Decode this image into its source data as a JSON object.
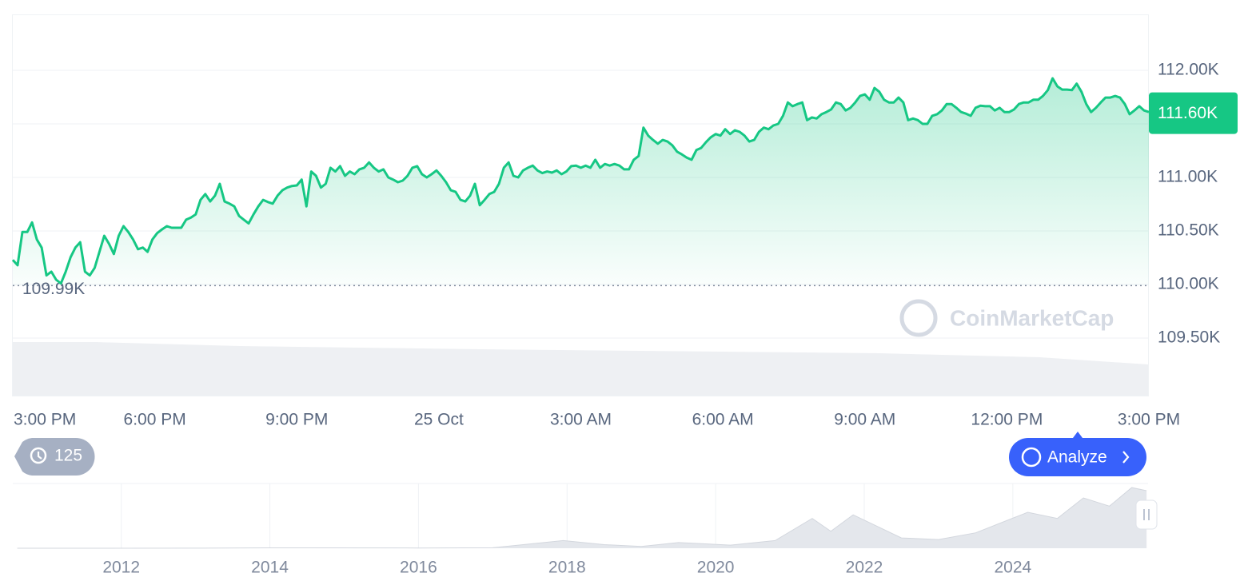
{
  "chart_data": [
    {
      "type": "line",
      "color": "#16c784",
      "xlim": [
        0,
        24
      ],
      "xticks": [
        {
          "value": 0,
          "label": "3:00 PM"
        },
        {
          "value": 3,
          "label": "6:00 PM"
        },
        {
          "value": 6,
          "label": "9:00 PM"
        },
        {
          "value": 9,
          "label": "25 Oct"
        },
        {
          "value": 12,
          "label": "3:00 AM"
        },
        {
          "value": 15,
          "label": "6:00 AM"
        },
        {
          "value": 18,
          "label": "9:00 AM"
        },
        {
          "value": 21,
          "label": "12:00 PM"
        },
        {
          "value": 24,
          "label": "3:00 PM"
        }
      ],
      "ylim": [
        108963,
        112522
      ],
      "yticks": [
        {
          "value": 109500,
          "label": "109.50K"
        },
        {
          "value": 110000,
          "label": "110.00K"
        },
        {
          "value": 110500,
          "label": "110.50K"
        },
        {
          "value": 111000,
          "label": "111.00K"
        },
        {
          "value": 111500,
          "label": "111.50K"
        },
        {
          "value": 112000,
          "label": "112.00K"
        }
      ],
      "grid": true,
      "ref_line": {
        "value": 109990,
        "label": "109.99K"
      },
      "last_price": {
        "value": 111600,
        "label": "111.60K"
      },
      "values": [
        110230,
        110180,
        110490,
        110490,
        110580,
        110420,
        110345,
        110085,
        110120,
        110045,
        110010,
        110120,
        110255,
        110345,
        110395,
        110120,
        110085,
        110155,
        110305,
        110455,
        110380,
        110285,
        110455,
        110545,
        110490,
        110420,
        110330,
        110345,
        110305,
        110420,
        110480,
        110515,
        110545,
        110530,
        110530,
        110530,
        110605,
        110625,
        110655,
        110790,
        110845,
        110775,
        110830,
        110940,
        110775,
        110755,
        110730,
        110640,
        110605,
        110570,
        110655,
        110730,
        110790,
        110770,
        110755,
        110830,
        110880,
        110905,
        110920,
        110925,
        110980,
        110730,
        111055,
        111015,
        110905,
        110940,
        111090,
        111055,
        111105,
        111015,
        111055,
        111030,
        111075,
        111090,
        111140,
        111090,
        111055,
        111075,
        111000,
        110980,
        110955,
        110970,
        111015,
        111090,
        111105,
        111030,
        111000,
        111030,
        111065,
        111015,
        110955,
        110880,
        110865,
        110790,
        110775,
        110830,
        110940,
        110740,
        110790,
        110845,
        110865,
        110940,
        111090,
        111140,
        111015,
        111000,
        111065,
        111090,
        111110,
        111065,
        111040,
        111055,
        111045,
        111065,
        111030,
        111055,
        111105,
        111110,
        111090,
        111110,
        111090,
        111165,
        111090,
        111125,
        111110,
        111125,
        111110,
        111075,
        111075,
        111165,
        111200,
        111465,
        111390,
        111350,
        111315,
        111350,
        111335,
        111300,
        111240,
        111215,
        111185,
        111165,
        111255,
        111275,
        111330,
        111375,
        111405,
        111390,
        111450,
        111405,
        111440,
        111425,
        111390,
        111335,
        111350,
        111425,
        111465,
        111450,
        111485,
        111500,
        111575,
        111700,
        111665,
        111685,
        111700,
        111535,
        111560,
        111550,
        111590,
        111610,
        111635,
        111700,
        111685,
        111625,
        111650,
        111700,
        111760,
        111775,
        111725,
        111835,
        111800,
        111725,
        111700,
        111700,
        111745,
        111700,
        111535,
        111550,
        111535,
        111500,
        111500,
        111575,
        111590,
        111625,
        111685,
        111685,
        111650,
        111610,
        111595,
        111575,
        111650,
        111670,
        111665,
        111665,
        111625,
        111650,
        111610,
        111610,
        111635,
        111685,
        111700,
        111700,
        111725,
        111725,
        111760,
        111815,
        111925,
        111850,
        111820,
        111820,
        111815,
        111875,
        111800,
        111685,
        111610,
        111650,
        111700,
        111745,
        111745,
        111760,
        111745,
        111685,
        111590,
        111625,
        111665,
        111625,
        111610
      ]
    },
    {
      "type": "area",
      "color": "#e4e7ec",
      "xlim": [
        2010.54,
        2025.82
      ],
      "xticks": [
        2012,
        2014,
        2016,
        2018,
        2020,
        2022,
        2024
      ],
      "ylim": [
        0,
        126000
      ],
      "x": [
        2010.6,
        2013.0,
        2014.0,
        2016.0,
        2017.0,
        2017.95,
        2018.5,
        2019.0,
        2019.5,
        2020.2,
        2020.8,
        2021.3,
        2021.55,
        2021.85,
        2022.5,
        2023.0,
        2023.5,
        2024.2,
        2024.6,
        2024.95,
        2025.3,
        2025.6,
        2025.8
      ],
      "values": [
        0,
        100,
        800,
        400,
        1000,
        15000,
        7000,
        3500,
        11000,
        6000,
        15000,
        58000,
        33000,
        65000,
        20000,
        17000,
        30000,
        70000,
        58000,
        98000,
        82000,
        118000,
        112000
      ]
    }
  ],
  "ui": {
    "history_badge": 125,
    "analyze_button": "Analyze",
    "watermark": "CoinMarketCap"
  }
}
